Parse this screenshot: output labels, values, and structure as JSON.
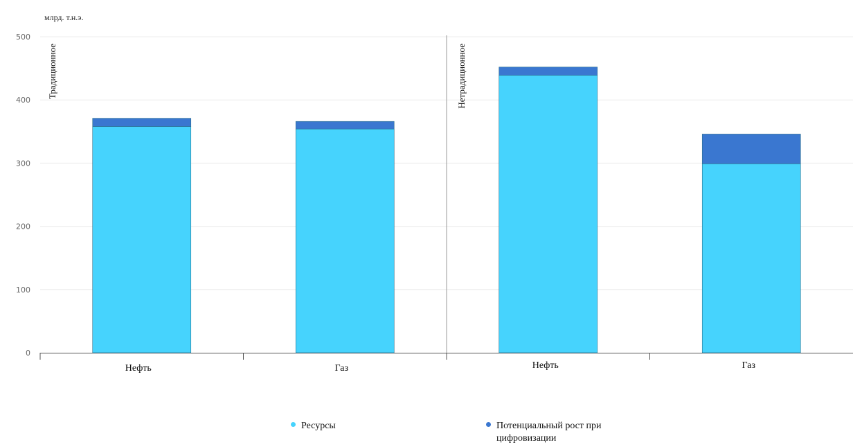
{
  "chart_data": {
    "type": "bar",
    "stacked": true,
    "unit_label": "млрд. т.н.э.",
    "ylim": [
      0,
      500
    ],
    "yticks": [
      "0",
      "100",
      "200",
      "300",
      "400",
      "500"
    ],
    "groups": [
      {
        "name": "Традиционное",
        "categories": [
          "Нефть",
          "Газ"
        ]
      },
      {
        "name": "Нетрадиционное",
        "categories": [
          "Нефть",
          "Газ"
        ]
      }
    ],
    "categories": [
      "Нефть",
      "Газ",
      "Нефть",
      "Газ"
    ],
    "series": [
      {
        "name": "Ресурсы",
        "color": "#46D3FD",
        "values": [
          358,
          354,
          439,
          299
        ]
      },
      {
        "name": "Потенциальный рост при цифровизации",
        "color": "#3A77D0",
        "values": [
          13,
          12,
          13,
          47
        ]
      }
    ],
    "grid": true,
    "legend_position": "bottom"
  }
}
